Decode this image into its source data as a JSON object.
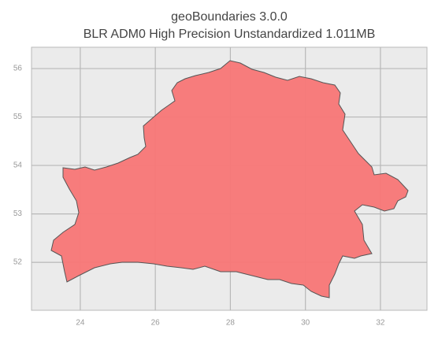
{
  "chart_data": {
    "type": "map",
    "title": "geoBoundaries 3.0.0",
    "subtitle": "BLR ADM0 High Precision Unstandardized 1.011MB",
    "xlim": [
      22.7,
      33.24
    ],
    "ylim": [
      51.01,
      56.44
    ],
    "xticks": [
      24,
      26,
      28,
      30,
      32
    ],
    "yticks": [
      52,
      53,
      54,
      55,
      56
    ],
    "grid": true,
    "color": "#f87676"
  }
}
